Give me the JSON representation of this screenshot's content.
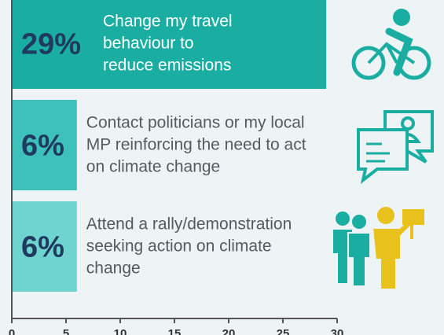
{
  "chart_data": {
    "type": "bar",
    "orientation": "horizontal",
    "categories": [
      "Change my travel\nbehaviour to\nreduce emissions",
      "Contact politicians or my local\nMP reinforcing the need to act\non climate change",
      "Attend a rally/demonstration\nseeking action on climate\nchange"
    ],
    "values": [
      29,
      6,
      6
    ],
    "value_labels": [
      "29%",
      "6%",
      "6%"
    ],
    "colors": [
      "#1aaea3",
      "#3fc1bb",
      "#6fd4d0"
    ],
    "xlim": [
      0,
      30
    ],
    "xticks": [
      0,
      5,
      10,
      15,
      20,
      25,
      30
    ]
  }
}
